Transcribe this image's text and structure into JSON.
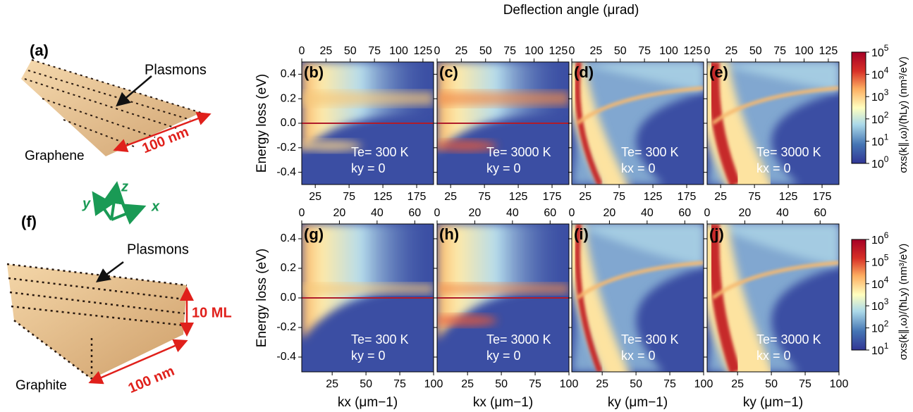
{
  "figure": {
    "illustrations": {
      "a": {
        "label": "(a)",
        "plasmons": "Plasmons",
        "material": "Graphene",
        "scale": "100 nm"
      },
      "axes": {
        "x": "x",
        "y": "y",
        "z": "z"
      },
      "f": {
        "label": "(f)",
        "plasmons": "Plasmons",
        "material": "Graphite",
        "scale": "100 nm",
        "layers": "10 ML"
      }
    },
    "top_axis_title": "Deflection angle (μrad)",
    "y_axis_title": "Energy loss (eV)",
    "rows": [
      {
        "top_xlim": [
          0,
          136
        ],
        "top_xticks": [
          0,
          25,
          50,
          75,
          100,
          125
        ],
        "xlim": [
          5,
          200
        ],
        "xticks": [
          25,
          75,
          125,
          175
        ],
        "ylim": [
          -0.5,
          0.5
        ],
        "yticks": [
          -0.4,
          -0.2,
          {
            "value": 0,
            "label": "0.0"
          },
          0.2,
          0.4
        ],
        "colorbar": {
          "scale": "log",
          "lim": [
            1,
            100000
          ],
          "title": "σxs(k∥,ω)/(ħLy) (nm³/eV)",
          "ticks": [
            {
              "value": 1,
              "label": "10",
              "sup": "0"
            },
            {
              "value": 10,
              "label": "10",
              "sup": "1"
            },
            {
              "value": 100,
              "label": "10",
              "sup": "2"
            },
            {
              "value": 1000,
              "label": "10",
              "sup": "3"
            },
            {
              "value": 10000,
              "label": "10",
              "sup": "4"
            },
            {
              "value": 100000,
              "label": "10",
              "sup": "5"
            }
          ]
        },
        "panels": [
          {
            "label": "(b)",
            "temperature": "Te= 300 K",
            "condition": "ky = 0"
          },
          {
            "label": "(c)",
            "temperature": "Te= 3000 K",
            "condition": "ky = 0"
          },
          {
            "label": "(d)",
            "temperature": "Te= 300 K",
            "condition": "kx = 0"
          },
          {
            "label": "(e)",
            "temperature": "Te= 3000 K",
            "condition": "kx = 0"
          }
        ]
      },
      {
        "top_xlim": [
          0,
          70
        ],
        "top_xticks": [
          0,
          20,
          40,
          60
        ],
        "xlim": [
          2.5,
          100
        ],
        "xticks": [
          25,
          50,
          75,
          100
        ],
        "ylim": [
          -0.5,
          0.5
        ],
        "yticks": [
          -0.4,
          -0.2,
          {
            "value": 0,
            "label": "0.0"
          },
          0.2,
          0.4
        ],
        "colorbar": {
          "scale": "log",
          "lim": [
            10,
            1000000
          ],
          "title": "σxs(k∥,ω)/(ħLy) (nm³/eV)",
          "ticks": [
            {
              "value": 10,
              "label": "10",
              "sup": "1"
            },
            {
              "value": 100,
              "label": "10",
              "sup": "2"
            },
            {
              "value": 1000,
              "label": "10",
              "sup": "3"
            },
            {
              "value": 10000,
              "label": "10",
              "sup": "4"
            },
            {
              "value": 100000,
              "label": "10",
              "sup": "5"
            },
            {
              "value": 1000000,
              "label": "10",
              "sup": "6"
            }
          ]
        },
        "panels": [
          {
            "label": "(g)",
            "temperature": "Te= 300 K",
            "condition": "ky = 0",
            "x_title": "kx (μm−1)"
          },
          {
            "label": "(h)",
            "temperature": "Te= 3000 K",
            "condition": "ky = 0",
            "x_title": "kx (μm−1)"
          },
          {
            "label": "(i)",
            "temperature": "Te= 300 K",
            "condition": "kx = 0",
            "x_title": "ky (μm−1)"
          },
          {
            "label": "(j)",
            "temperature": "Te= 3000 K",
            "condition": "kx = 0",
            "x_title": "ky (μm−1)"
          }
        ]
      }
    ]
  }
}
